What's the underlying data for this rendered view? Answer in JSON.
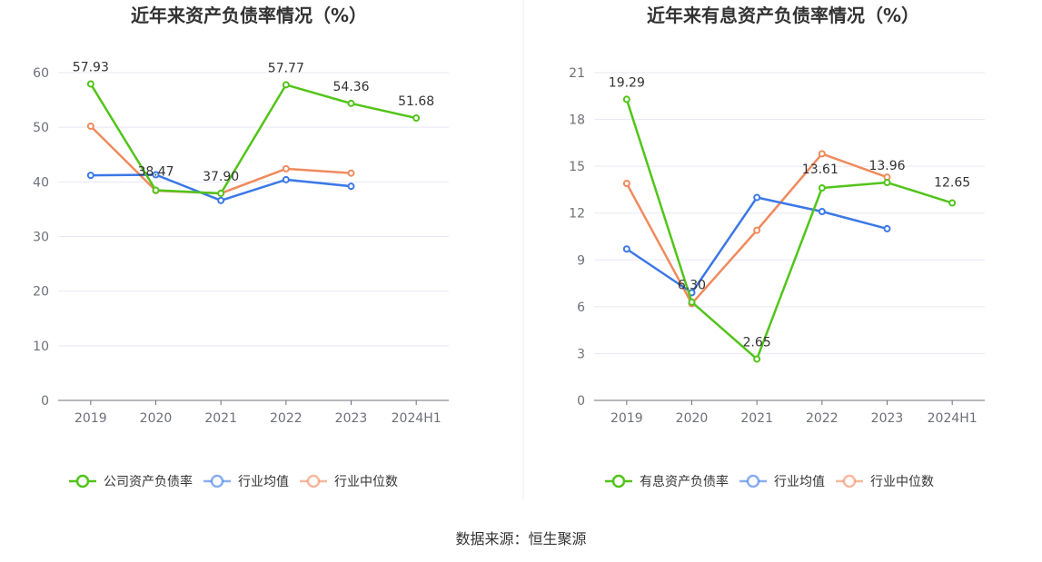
{
  "source_text": "数据来源：恒生聚源",
  "chart_data": [
    {
      "type": "line",
      "title": "近年来资产负债率情况（%）",
      "categories": [
        "2019",
        "2020",
        "2021",
        "2022",
        "2023",
        "2024H1"
      ],
      "ylim": [
        0,
        60
      ],
      "yticks": [
        0,
        10,
        20,
        30,
        40,
        50,
        60
      ],
      "grid": true,
      "legend_position": "bottom",
      "series": [
        {
          "name": "公司资产负债率",
          "color": "#52c41a",
          "values": [
            57.93,
            38.47,
            37.9,
            57.77,
            54.36,
            51.68
          ],
          "labels": true
        },
        {
          "name": "行业均值",
          "color": "#3b78e7",
          "values": [
            41.2,
            41.3,
            36.6,
            40.4,
            39.2,
            null
          ],
          "labels": false
        },
        {
          "name": "行业中位数",
          "color": "#f08a5d",
          "values": [
            50.2,
            38.4,
            37.9,
            42.4,
            41.6,
            null
          ],
          "labels": false
        }
      ]
    },
    {
      "type": "line",
      "title": "近年来有息资产负债率情况（%）",
      "categories": [
        "2019",
        "2020",
        "2021",
        "2022",
        "2023",
        "2024H1"
      ],
      "ylim": [
        0,
        21
      ],
      "yticks": [
        0,
        3,
        6,
        9,
        12,
        15,
        18,
        21
      ],
      "grid": true,
      "legend_position": "bottom",
      "series": [
        {
          "name": "有息资产负债率",
          "color": "#52c41a",
          "values": [
            19.29,
            6.3,
            2.65,
            13.61,
            13.96,
            12.65
          ],
          "labels": true
        },
        {
          "name": "行业均值",
          "color": "#3b78e7",
          "values": [
            9.7,
            6.9,
            13.0,
            12.1,
            11.0,
            null
          ],
          "labels": false
        },
        {
          "name": "行业中位数",
          "color": "#f08a5d",
          "values": [
            13.9,
            6.2,
            10.9,
            15.8,
            14.3,
            null
          ],
          "labels": false
        }
      ]
    }
  ]
}
